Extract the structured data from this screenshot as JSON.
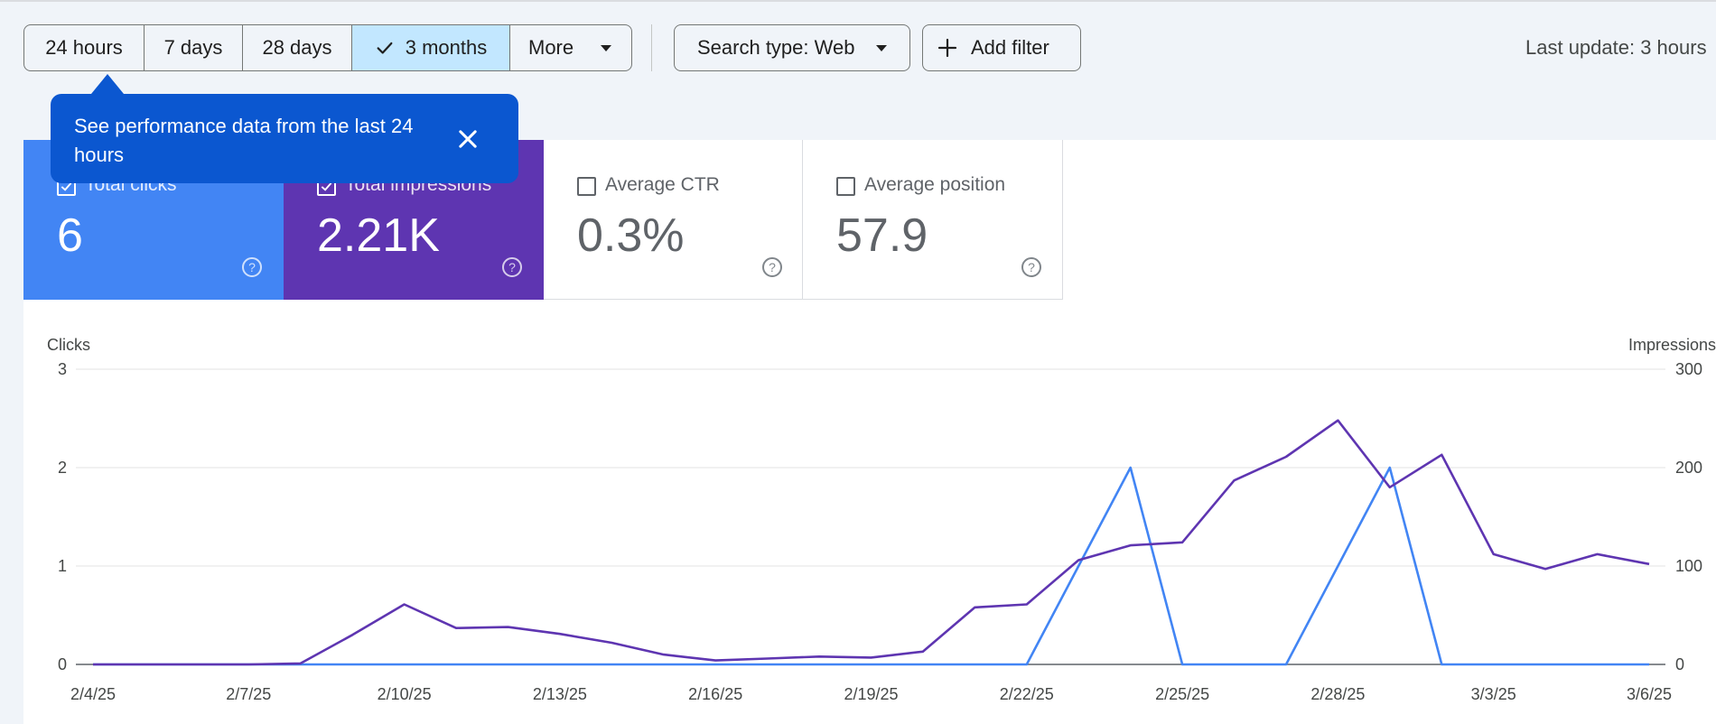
{
  "toolbar": {
    "ranges": [
      {
        "label": "24 hours",
        "selected": false
      },
      {
        "label": "7 days",
        "selected": false
      },
      {
        "label": "28 days",
        "selected": false
      },
      {
        "label": "3 months",
        "selected": true
      },
      {
        "label": "More",
        "selected": false
      }
    ],
    "search_type": "Search type: Web",
    "add_filter": "Add filter",
    "last_update": "Last update: 3 hours"
  },
  "tooltip": {
    "text": "See performance data from the last 24 hours"
  },
  "metrics": [
    {
      "label": "Total clicks",
      "value": "6",
      "checked": true
    },
    {
      "label": "Total impressions",
      "value": "2.21K",
      "checked": true
    },
    {
      "label": "Average CTR",
      "value": "0.3%",
      "checked": false
    },
    {
      "label": "Average position",
      "value": "57.9",
      "checked": false
    }
  ],
  "colors": {
    "clicks": "#4285f4",
    "impressions": "#5e35b1",
    "tooltip": "#0b57d0",
    "selected_range": "#c2e7ff"
  },
  "chart_data": {
    "type": "line",
    "y_left_label": "Clicks",
    "y_right_label": "Impressions",
    "y_left_ticks": [
      "0",
      "1",
      "2",
      "3"
    ],
    "y_right_ticks": [
      "0",
      "100",
      "200",
      "300"
    ],
    "y_left_range": [
      0,
      3
    ],
    "y_right_range": [
      0,
      300
    ],
    "x_tick_labels": [
      "2/4/25",
      "2/7/25",
      "2/10/25",
      "2/13/25",
      "2/16/25",
      "2/19/25",
      "2/22/25",
      "2/25/25",
      "2/28/25",
      "3/3/25",
      "3/6/25"
    ],
    "x": [
      "2/4/25",
      "2/5/25",
      "2/6/25",
      "2/7/25",
      "2/8/25",
      "2/9/25",
      "2/10/25",
      "2/11/25",
      "2/12/25",
      "2/13/25",
      "2/14/25",
      "2/15/25",
      "2/16/25",
      "2/17/25",
      "2/18/25",
      "2/19/25",
      "2/20/25",
      "2/21/25",
      "2/22/25",
      "2/23/25",
      "2/24/25",
      "2/25/25",
      "2/26/25",
      "2/27/25",
      "2/28/25",
      "3/1/25",
      "3/2/25",
      "3/3/25",
      "3/4/25",
      "3/5/25",
      "3/6/25"
    ],
    "series": [
      {
        "name": "Clicks",
        "axis": "left",
        "values": [
          0,
          0,
          0,
          0,
          0,
          0,
          0,
          0,
          0,
          0,
          0,
          0,
          0,
          0,
          0,
          0,
          0,
          0,
          0,
          1,
          2,
          0,
          0,
          0,
          1,
          2,
          0,
          0,
          0,
          0,
          0
        ]
      },
      {
        "name": "Impressions",
        "axis": "right",
        "values": [
          0,
          0,
          0,
          0,
          1,
          30,
          61,
          37,
          38,
          31,
          22,
          10,
          4,
          6,
          8,
          7,
          13,
          58,
          61,
          106,
          121,
          124,
          187,
          211,
          248,
          180,
          213,
          112,
          97,
          112,
          102
        ]
      }
    ],
    "grid": true
  }
}
